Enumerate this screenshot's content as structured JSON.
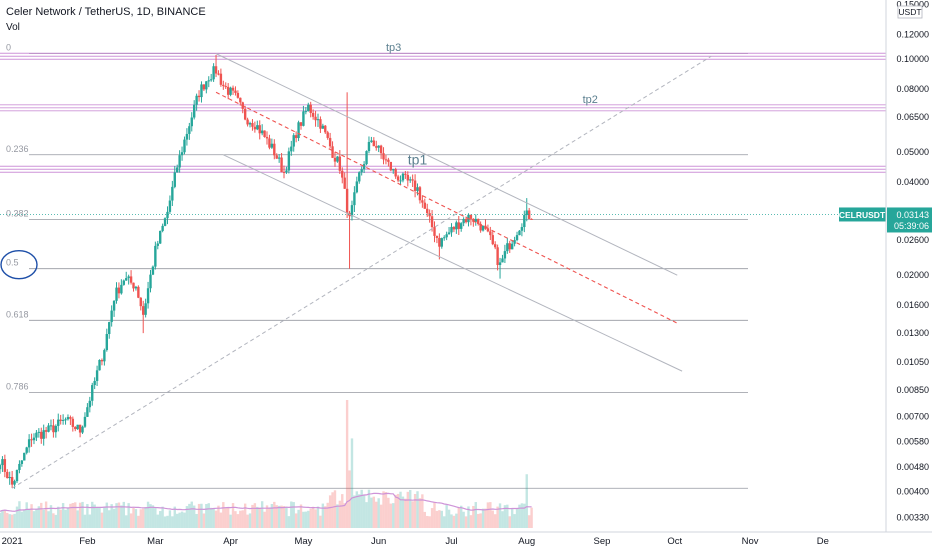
{
  "header": {
    "title": "Celer Network / TetherUS, 1D, BINANCE",
    "volume_label": "Vol"
  },
  "price_axis": {
    "currency": "USDT"
  },
  "last_price": {
    "symbol": "CELRUSDT",
    "price": "0.03143",
    "countdown": "05:39:06",
    "color": "#26a69a"
  },
  "colors": {
    "up": "#26a69a",
    "down": "#ef5350",
    "channel": "#b2b5be",
    "trend": "#b2b5be",
    "midline": "#ef5350",
    "fib": "#9598a1",
    "target": "#ce93d8",
    "target_label": "#5b7f8f",
    "volume_ma": "#ce93d8",
    "circle": "#1e4fa8"
  },
  "chart_data": {
    "type": "candlestick",
    "symbol": "CELRUSDT",
    "interval": "1D",
    "exchange": "BINANCE",
    "y_scale": "log",
    "ylim": [
      0.00305,
      0.155
    ],
    "xlim_days": [
      -5,
      360
    ],
    "time_axis_labels": [
      "2021",
      "Feb",
      "Mar",
      "Apr",
      "May",
      "Jun",
      "Jul",
      "Aug",
      "Sep",
      "Oct",
      "Nov",
      "De"
    ],
    "price_ticks": [
      "0.15000",
      "0.12000",
      "0.10000",
      "0.08000",
      "0.06500",
      "0.05000",
      "0.04000",
      "0.03143",
      "0.02600",
      "0.02000",
      "0.01600",
      "0.01300",
      "0.01050",
      "0.00850",
      "0.00700",
      "0.00580",
      "0.00480",
      "0.00400",
      "0.00330"
    ],
    "anchors": [
      [
        "2020-12-27",
        0.0051
      ],
      [
        "2021-01-01",
        0.0042
      ],
      [
        "2021-01-09",
        0.006
      ],
      [
        "2021-01-16",
        0.0063
      ],
      [
        "2021-01-23",
        0.0068
      ],
      [
        "2021-01-29",
        0.0063
      ],
      [
        "2021-02-03",
        0.0085
      ],
      [
        "2021-02-08",
        0.0117
      ],
      [
        "2021-02-12",
        0.017
      ],
      [
        "2021-02-16",
        0.0195
      ],
      [
        "2021-02-21",
        0.0185
      ],
      [
        "2021-02-24",
        0.015
      ],
      [
        "2021-03-01",
        0.024
      ],
      [
        "2021-03-06",
        0.032
      ],
      [
        "2021-03-10",
        0.045
      ],
      [
        "2021-03-14",
        0.058
      ],
      [
        "2021-03-19",
        0.078
      ],
      [
        "2021-03-23",
        0.088
      ],
      [
        "2021-03-26",
        0.092
      ],
      [
        "2021-03-29",
        0.082
      ],
      [
        "2021-04-03",
        0.075
      ],
      [
        "2021-04-07",
        0.065
      ],
      [
        "2021-04-11",
        0.062
      ],
      [
        "2021-04-15",
        0.056
      ],
      [
        "2021-04-19",
        0.05
      ],
      [
        "2021-04-23",
        0.043
      ],
      [
        "2021-04-28",
        0.058
      ],
      [
        "2021-05-03",
        0.07
      ],
      [
        "2021-05-08",
        0.062
      ],
      [
        "2021-05-13",
        0.05
      ],
      [
        "2021-05-16",
        0.045
      ],
      [
        "2021-05-20",
        0.03
      ],
      [
        "2021-05-24",
        0.042
      ],
      [
        "2021-05-29",
        0.055
      ],
      [
        "2021-06-03",
        0.048
      ],
      [
        "2021-06-08",
        0.042
      ],
      [
        "2021-06-13",
        0.04
      ],
      [
        "2021-06-17",
        0.038
      ],
      [
        "2021-06-21",
        0.031
      ],
      [
        "2021-06-26",
        0.0255
      ],
      [
        "2021-07-01",
        0.028
      ],
      [
        "2021-07-05",
        0.03
      ],
      [
        "2021-07-09",
        0.031
      ],
      [
        "2021-07-13",
        0.029
      ],
      [
        "2021-07-17",
        0.026
      ],
      [
        "2021-07-21",
        0.0215
      ],
      [
        "2021-07-24",
        0.0245
      ],
      [
        "2021-07-27",
        0.027
      ],
      [
        "2021-07-31",
        0.031
      ],
      [
        "2021-08-03",
        0.0314
      ]
    ],
    "wicks": [
      [
        "2021-03-26",
        "high",
        0.103
      ],
      [
        "2021-05-20",
        "low",
        0.021
      ],
      [
        "2021-05-19",
        "high",
        0.078
      ],
      [
        "2021-06-26",
        "low",
        0.0225
      ],
      [
        "2021-07-21",
        "low",
        0.0195
      ],
      [
        "2021-08-01",
        "high",
        0.0355
      ],
      [
        "2021-02-24",
        "low",
        0.013
      ]
    ],
    "volume_spikes": [
      [
        "2021-05-19",
        1.0
      ],
      [
        "2021-05-21",
        0.7
      ],
      [
        "2021-05-20",
        0.45
      ],
      [
        "2021-08-01",
        0.42
      ]
    ],
    "levels": [
      {
        "label": "0",
        "price": 0.104,
        "type": "fib"
      },
      {
        "label": "0.236",
        "price": 0.049,
        "type": "fib"
      },
      {
        "label": "0.382",
        "price": 0.0303,
        "type": "fib"
      },
      {
        "label": "0.5",
        "price": 0.021,
        "type": "fib"
      },
      {
        "label": "0.618",
        "price": 0.0143,
        "type": "fib"
      },
      {
        "label": "0.786",
        "price": 0.00835,
        "type": "fib"
      },
      {
        "label": "",
        "price": 0.0041,
        "type": "fib"
      },
      {
        "label": "tp3",
        "price": 0.102,
        "type": "target"
      },
      {
        "label": "tp2",
        "price": 0.0695,
        "type": "target"
      },
      {
        "label": "tp1",
        "price": 0.044,
        "type": "target"
      }
    ],
    "target_label_days": {
      "tp3": 154,
      "tp2": 235,
      "tp1": 163
    },
    "channel": {
      "upper": [
        [
          "2021-03-26",
          0.104
        ],
        [
          "2021-10-02",
          0.02
        ]
      ],
      "middle": [
        [
          "2021-03-26",
          0.078
        ],
        [
          "2021-10-02",
          0.014
        ]
      ],
      "lower": [
        [
          "2021-03-29",
          0.049
        ],
        [
          "2021-10-04",
          0.0098
        ]
      ]
    },
    "trendline": [
      [
        "2021-01-01",
        0.0041
      ],
      [
        "2021-10-16",
        0.102
      ]
    ]
  }
}
